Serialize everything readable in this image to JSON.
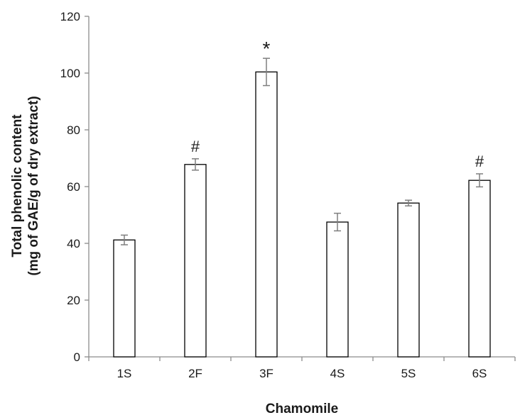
{
  "chart_data": {
    "type": "bar",
    "categories": [
      "1S",
      "2F",
      "3F",
      "4S",
      "5S",
      "6S"
    ],
    "values": [
      41.2,
      67.8,
      100.4,
      47.5,
      54.2,
      62.2
    ],
    "errors": [
      1.7,
      2.0,
      4.8,
      3.1,
      1.0,
      2.3
    ],
    "annotations": [
      "",
      "#",
      "*",
      "",
      "",
      "#"
    ],
    "xlabel": "Chamomile",
    "ylabel_line1": "Total phenolic content",
    "ylabel_line2": "(mg of GAE/g of dry extract)",
    "ylim": [
      0,
      120
    ],
    "yticks": [
      0,
      20,
      40,
      60,
      80,
      100,
      120
    ],
    "grid": false,
    "bar_fill": "#ffffff",
    "bar_stroke": "#000000",
    "error_color": "#7f7f7f"
  }
}
